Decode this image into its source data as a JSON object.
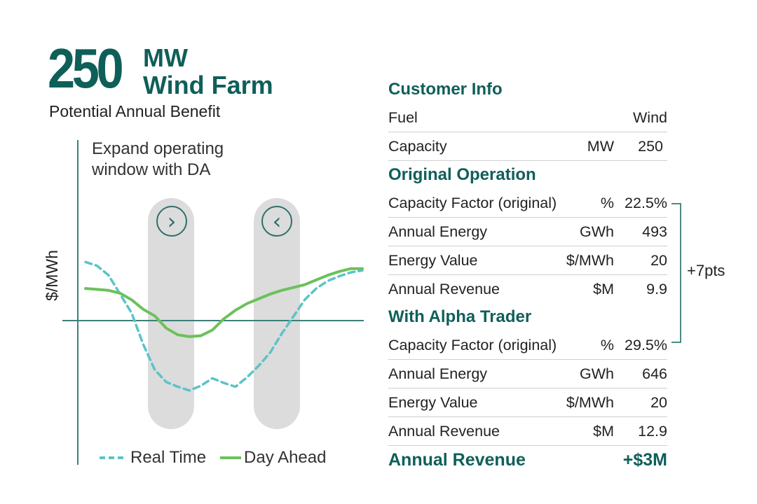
{
  "header": {
    "number": "250",
    "unit": "MW",
    "name": "Wind Farm",
    "subtitle": "Potential Annual Benefit"
  },
  "chart_data": {
    "type": "line",
    "annotation": "Expand operating window with DA",
    "ylabel": "$/MWh",
    "xlabel": "",
    "x": [
      0,
      1,
      2,
      3,
      4,
      5,
      6,
      7,
      8,
      9,
      10,
      11,
      12,
      13,
      14,
      15,
      16,
      17,
      18,
      19,
      20,
      21,
      22,
      23,
      24
    ],
    "ylim": [
      -10,
      10
    ],
    "series": [
      {
        "name": "Real Time",
        "color": "#5cc3c9",
        "style": "dashed",
        "values": [
          6.2,
          5.8,
          4.8,
          2.8,
          0.8,
          -2.5,
          -5.2,
          -6.5,
          -7.0,
          -7.4,
          -6.9,
          -6.1,
          -6.6,
          -7.0,
          -6.0,
          -4.8,
          -3.4,
          -1.4,
          0.4,
          2.2,
          3.4,
          4.2,
          4.7,
          5.1,
          5.3
        ]
      },
      {
        "name": "Day Ahead",
        "color": "#6cc15a",
        "style": "solid",
        "values": [
          3.4,
          3.3,
          3.2,
          2.9,
          2.2,
          1.2,
          0.5,
          -0.8,
          -1.5,
          -1.7,
          -1.6,
          -1.0,
          0.2,
          1.1,
          1.8,
          2.3,
          2.8,
          3.2,
          3.5,
          3.8,
          4.3,
          4.8,
          5.2,
          5.5,
          5.5
        ]
      }
    ],
    "indicators": [
      {
        "symbol": "›"
      },
      {
        "symbol": "‹"
      }
    ],
    "legend": "bottom"
  },
  "table": {
    "customer_info": {
      "title": "Customer Info",
      "rows": [
        {
          "label": "Fuel",
          "unit": "",
          "value": "Wind"
        },
        {
          "label": "Capacity",
          "unit": "MW",
          "value": "250"
        }
      ]
    },
    "original": {
      "title": "Original Operation",
      "rows": [
        {
          "label": "Capacity Factor (original)",
          "unit": "%",
          "value": "22.5%"
        },
        {
          "label": "Annual Energy",
          "unit": "GWh",
          "value": "493"
        },
        {
          "label": "Energy Value",
          "unit": "$/MWh",
          "value": "20"
        },
        {
          "label": "Annual Revenue",
          "unit": "$M",
          "value": "9.9"
        }
      ]
    },
    "alpha": {
      "title": "With Alpha Trader",
      "rows": [
        {
          "label": "Capacity Factor (original)",
          "unit": "%",
          "value": "29.5%"
        },
        {
          "label": "Annual Energy",
          "unit": "GWh",
          "value": "646"
        },
        {
          "label": "Energy Value",
          "unit": "$/MWh",
          "value": "20"
        },
        {
          "label": "Annual Revenue",
          "unit": "$M",
          "value": "12.9"
        }
      ]
    },
    "total": {
      "label": "Annual Revenue",
      "value": "+$3M"
    },
    "bracket_label": "+7pts"
  },
  "colors": {
    "brand": "#0f5f59",
    "real_time": "#5cc3c9",
    "day_ahead": "#6cc15a",
    "window": "#dcdcdc"
  }
}
